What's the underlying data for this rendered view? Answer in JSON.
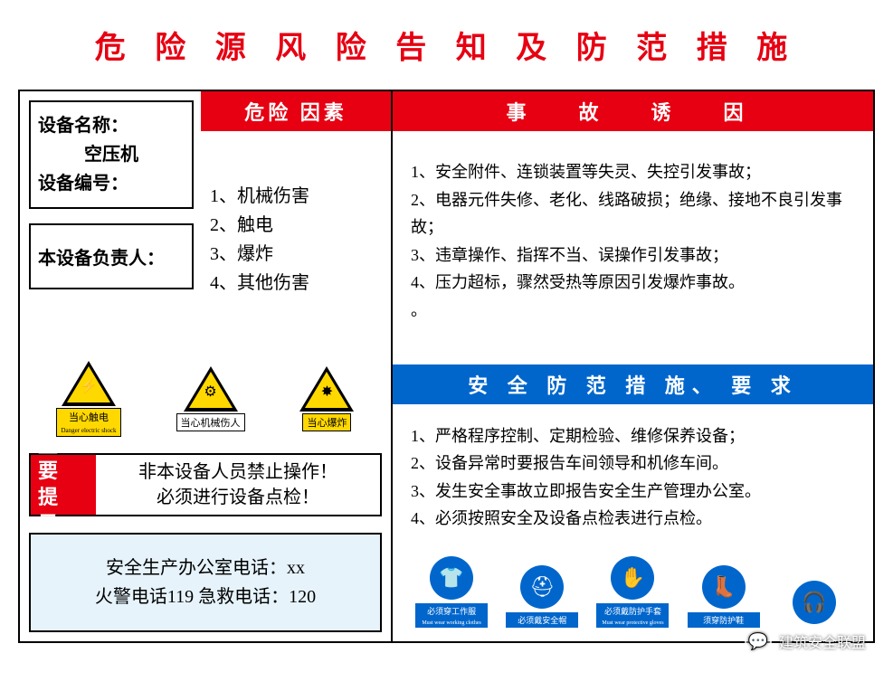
{
  "title": "危 险 源 风 险 告 知 及 防 范 措 施",
  "title_color": "#e60012",
  "device": {
    "name_label": "设备名称：",
    "name_value": "空压机",
    "number_label": "设备编号：",
    "responsible_label": "本设备负责人："
  },
  "risk_factors": {
    "header": "危险 因素",
    "header_bg": "#e60012",
    "items": [
      "1、机械伤害",
      "2、触电",
      "3、爆炸",
      "4、其他伤害"
    ]
  },
  "accident_causes": {
    "header": "事　故　诱　因",
    "header_bg": "#e60012",
    "items": [
      "1、安全附件、连锁装置等失灵、失控引发事故；",
      "2、电器元件失修、老化、线路破损；绝缘、接地不良引发事故；",
      "3、违章操作、指挥不当、误操作引发事故；",
      "4、压力超标，骤然受热等原因引发爆炸事故。",
      "。"
    ]
  },
  "warning_signs": [
    {
      "label": "当心触电",
      "label_en": "Danger electric shock",
      "icon": "⚡",
      "yellow": true
    },
    {
      "label": "当心机械伤人",
      "icon": "⚙",
      "yellow": false
    },
    {
      "label": "当心爆炸",
      "icon": "✸",
      "yellow": true
    }
  ],
  "tips": {
    "label": "重 要\n提 示",
    "label_bg": "#e60012",
    "line1": "非本设备人员禁止操作！",
    "line2": "必须进行设备点检！"
  },
  "phones": {
    "bg": "#e6f3fb",
    "line1": "安全生产办公室电话：xx",
    "line2": "火警电话119  急救电话：120"
  },
  "measures": {
    "header": "安 全 防 范 措 施、 要 求",
    "header_bg": "#0066cc",
    "items": [
      "1、严格程序控制、定期检验、维修保养设备；",
      "2、设备异常时要报告车间领导和机修车间。",
      "3、发生安全事故立即报告安全生产管理办公室。",
      "4、必须按照安全及设备点检表进行点检。"
    ]
  },
  "ppe": [
    {
      "label": "必须穿工作服",
      "sub": "Must wear working clothes",
      "icon": "👕"
    },
    {
      "label": "必须戴安全帽",
      "icon": "⛑"
    },
    {
      "label": "必须戴防护手套",
      "sub": "Must wear protective gloves",
      "icon": "✋"
    },
    {
      "label": "须穿防护鞋",
      "icon": "👢"
    },
    {
      "label": "",
      "icon": "🎧"
    }
  ],
  "ppe_color": "#0066cc",
  "watermark": {
    "text": "建筑安全联盟",
    "icon": "💬"
  }
}
